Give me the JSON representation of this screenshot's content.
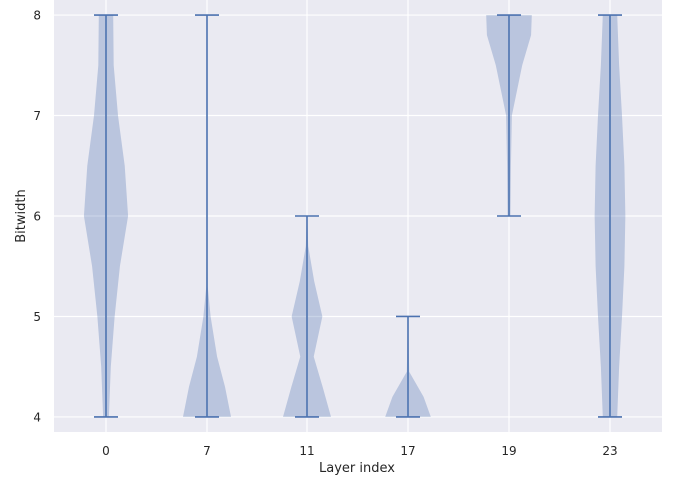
{
  "chart_data": {
    "type": "violin",
    "title": "",
    "xlabel": "Layer index",
    "ylabel": "Bitwidth",
    "ylim": [
      3.85,
      8.15
    ],
    "yticks": [
      4,
      5,
      6,
      7,
      8
    ],
    "grid": true,
    "categories": [
      "0",
      "7",
      "11",
      "17",
      "19",
      "23"
    ],
    "violins": [
      {
        "category": "0",
        "min": 4,
        "max": 8,
        "density": [
          [
            4.0,
            0.12
          ],
          [
            4.5,
            0.2
          ],
          [
            5.0,
            0.36
          ],
          [
            5.5,
            0.58
          ],
          [
            6.0,
            0.92
          ],
          [
            6.5,
            0.78
          ],
          [
            7.0,
            0.5
          ],
          [
            7.5,
            0.32
          ],
          [
            8.0,
            0.3
          ]
        ]
      },
      {
        "category": "7",
        "min": 4,
        "max": 8,
        "density": [
          [
            4.0,
            1.0
          ],
          [
            4.3,
            0.75
          ],
          [
            4.6,
            0.42
          ],
          [
            5.0,
            0.15
          ],
          [
            5.3,
            0.03
          ],
          [
            6.0,
            0.01
          ],
          [
            7.0,
            0.01
          ],
          [
            8.0,
            0.01
          ]
        ]
      },
      {
        "category": "11",
        "min": 4,
        "max": 6,
        "density": [
          [
            4.0,
            1.0
          ],
          [
            4.3,
            0.65
          ],
          [
            4.6,
            0.28
          ],
          [
            5.0,
            0.64
          ],
          [
            5.35,
            0.3
          ],
          [
            5.7,
            0.05
          ],
          [
            6.0,
            0.01
          ]
        ]
      },
      {
        "category": "17",
        "min": 4,
        "max": 5,
        "density": [
          [
            4.0,
            0.95
          ],
          [
            4.2,
            0.65
          ],
          [
            4.45,
            0.05
          ],
          [
            4.7,
            0.03
          ],
          [
            5.0,
            0.01
          ]
        ]
      },
      {
        "category": "19",
        "min": 6,
        "max": 8,
        "density": [
          [
            6.0,
            0.06
          ],
          [
            6.5,
            0.08
          ],
          [
            7.0,
            0.12
          ],
          [
            7.5,
            0.55
          ],
          [
            7.8,
            0.92
          ],
          [
            8.0,
            0.95
          ]
        ]
      },
      {
        "category": "23",
        "min": 4,
        "max": 8,
        "density": [
          [
            4.0,
            0.3
          ],
          [
            4.5,
            0.38
          ],
          [
            5.0,
            0.5
          ],
          [
            5.5,
            0.6
          ],
          [
            6.0,
            0.64
          ],
          [
            6.5,
            0.6
          ],
          [
            7.0,
            0.5
          ],
          [
            7.5,
            0.38
          ],
          [
            8.0,
            0.3
          ]
        ]
      }
    ],
    "colors": {
      "violin_fill": "#4c72b0",
      "violin_line": "#4c72b0",
      "plot_bg": "#eaeaf2",
      "grid": "#ffffff"
    }
  }
}
